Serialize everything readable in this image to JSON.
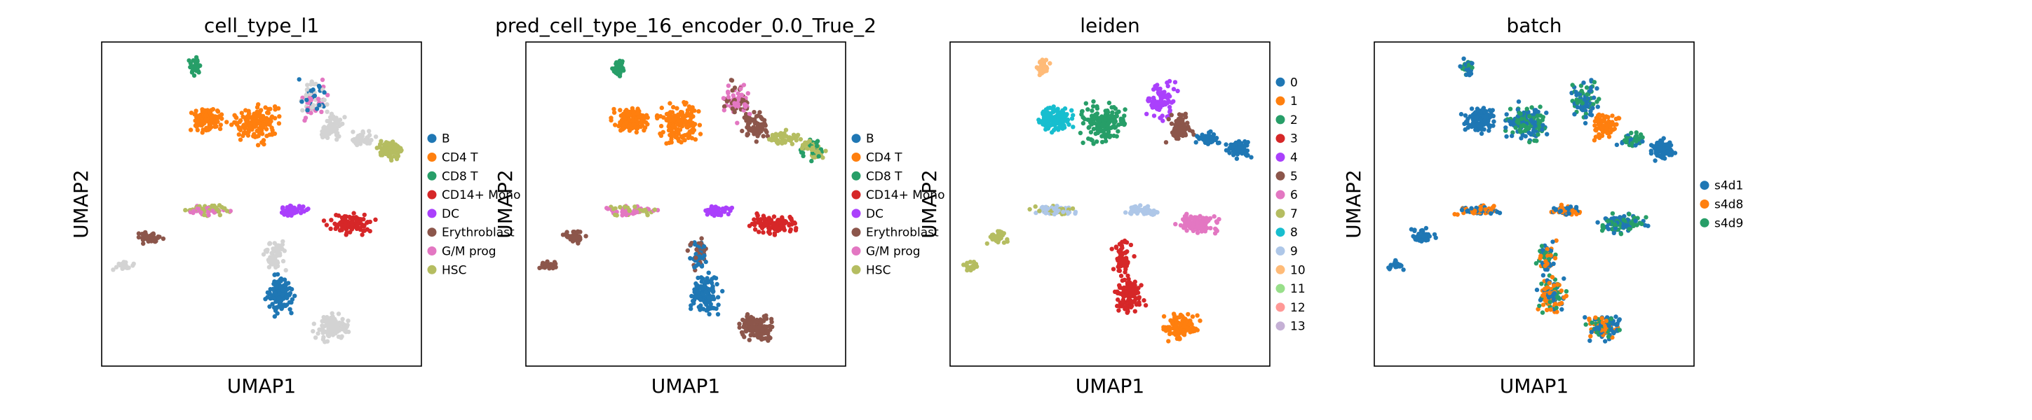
{
  "chart_data": [
    {
      "type": "scatter",
      "title": "cell_type_l1",
      "xlabel": "UMAP1",
      "ylabel": "UMAP2",
      "grid": false,
      "legend_placement": "right",
      "legend": [
        {
          "label": "B",
          "color": "#1f77b4"
        },
        {
          "label": "CD4 T",
          "color": "#ff7f0e"
        },
        {
          "label": "CD8 T",
          "color": "#279e68"
        },
        {
          "label": "CD14+ Mono",
          "color": "#d62728"
        },
        {
          "label": "DC",
          "color": "#aa40fc"
        },
        {
          "label": "Erythroblast",
          "color": "#8c564b"
        },
        {
          "label": "G/M prog",
          "color": "#e377c2"
        },
        {
          "label": "HSC",
          "color": "#b5bd61"
        }
      ]
    },
    {
      "type": "scatter",
      "title": "pred_cell_type_16_encoder_0.0_True_2",
      "xlabel": "UMAP1",
      "ylabel": "UMAP2",
      "grid": false,
      "legend_placement": "right",
      "legend": [
        {
          "label": "B",
          "color": "#1f77b4"
        },
        {
          "label": "CD4 T",
          "color": "#ff7f0e"
        },
        {
          "label": "CD8 T",
          "color": "#279e68"
        },
        {
          "label": "CD14+ Mono",
          "color": "#d62728"
        },
        {
          "label": "DC",
          "color": "#aa40fc"
        },
        {
          "label": "Erythroblast",
          "color": "#8c564b"
        },
        {
          "label": "G/M prog",
          "color": "#e377c2"
        },
        {
          "label": "HSC",
          "color": "#b5bd61"
        }
      ]
    },
    {
      "type": "scatter",
      "title": "leiden",
      "xlabel": "UMAP1",
      "ylabel": "UMAP2",
      "grid": false,
      "legend_placement": "right",
      "legend": [
        {
          "label": "0",
          "color": "#1f77b4"
        },
        {
          "label": "1",
          "color": "#ff7f0e"
        },
        {
          "label": "2",
          "color": "#279e68"
        },
        {
          "label": "3",
          "color": "#d62728"
        },
        {
          "label": "4",
          "color": "#aa40fc"
        },
        {
          "label": "5",
          "color": "#8c564b"
        },
        {
          "label": "6",
          "color": "#e377c2"
        },
        {
          "label": "7",
          "color": "#b5bd61"
        },
        {
          "label": "8",
          "color": "#17becf"
        },
        {
          "label": "9",
          "color": "#aec7e8"
        },
        {
          "label": "10",
          "color": "#ffbb78"
        },
        {
          "label": "11",
          "color": "#98df8a"
        },
        {
          "label": "12",
          "color": "#ff9896"
        },
        {
          "label": "13",
          "color": "#c5b0d5"
        }
      ]
    },
    {
      "type": "scatter",
      "title": "batch",
      "xlabel": "UMAP1",
      "ylabel": "UMAP2",
      "grid": false,
      "legend_placement": "right",
      "legend": [
        {
          "label": "s4d1",
          "color": "#1f77b4"
        },
        {
          "label": "s4d8",
          "color": "#ff7f0e"
        },
        {
          "label": "s4d9",
          "color": "#279e68"
        }
      ]
    }
  ]
}
